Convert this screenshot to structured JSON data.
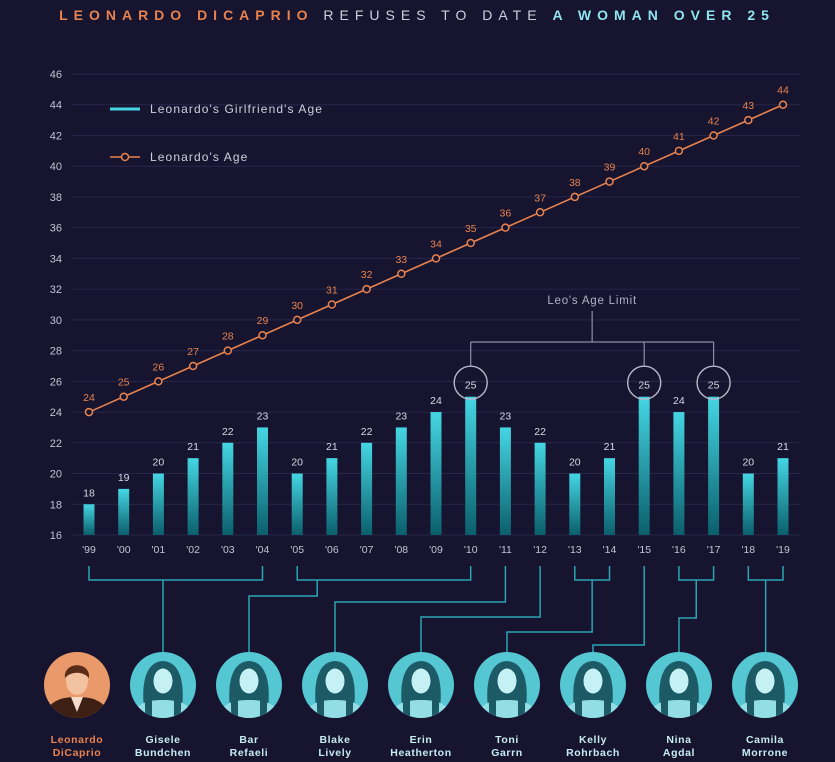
{
  "colors": {
    "background": "#16142e",
    "orange": "#e8834f",
    "cyan": "#45d6e3",
    "title_gray": "#cfcede",
    "title_cyan": "#8fe4ee",
    "grid": "#28264b",
    "connector": "#2aa3b4",
    "portrait_cyan": "#55c7d3",
    "portrait_orange": "#ea9a6a",
    "name_text": "#c6ecf2"
  },
  "chart_data": {
    "type": "bar",
    "title": [
      "LEONARDO DICAPRIO",
      "REFUSES TO DATE",
      "A WOMAN OVER 25"
    ],
    "categories": [
      "'99",
      "'00",
      "'01",
      "'02",
      "'03",
      "'04",
      "'05",
      "'06",
      "'07",
      "'08",
      "'09",
      "'10",
      "'11",
      "'12",
      "'13",
      "'14",
      "'15",
      "'16",
      "'17",
      "'18",
      "'19"
    ],
    "series": [
      {
        "name": "Leonardo's Girlfriend's Age",
        "type": "bar",
        "values": [
          18,
          19,
          20,
          21,
          22,
          23,
          20,
          21,
          22,
          23,
          24,
          25,
          23,
          22,
          20,
          21,
          25,
          24,
          25,
          20,
          21
        ]
      },
      {
        "name": "Leonardo's Age",
        "type": "line",
        "values": [
          24,
          25,
          26,
          27,
          28,
          29,
          30,
          31,
          32,
          33,
          34,
          35,
          36,
          37,
          38,
          39,
          40,
          41,
          42,
          43,
          44
        ]
      }
    ],
    "ylim": [
      16,
      46
    ],
    "yticks": [
      16,
      18,
      20,
      22,
      24,
      26,
      28,
      30,
      32,
      34,
      36,
      38,
      40,
      42,
      44,
      46
    ],
    "grid": true,
    "legend_position": "top-left",
    "annotations": [
      {
        "text": "Leo's Age Limit",
        "category_indices": [
          11,
          16,
          18
        ]
      }
    ]
  },
  "people": [
    {
      "name_lines": [
        "Leonardo",
        "DiCaprio"
      ],
      "is_leo": true
    },
    {
      "name_lines": [
        "Gisele",
        "Bundchen"
      ],
      "year_indices": [
        0,
        5
      ]
    },
    {
      "name_lines": [
        "Bar",
        "Refaeli"
      ],
      "year_indices": [
        6,
        11
      ]
    },
    {
      "name_lines": [
        "Blake",
        "Lively"
      ],
      "year_indices": [
        12,
        12
      ]
    },
    {
      "name_lines": [
        "Erin",
        "Heatherton"
      ],
      "year_indices": [
        13,
        13
      ]
    },
    {
      "name_lines": [
        "Toni",
        "Garrn"
      ],
      "year_indices": [
        14,
        15
      ]
    },
    {
      "name_lines": [
        "Kelly",
        "Rohrbach"
      ],
      "year_indices": [
        16,
        16
      ]
    },
    {
      "name_lines": [
        "Nina",
        "Agdal"
      ],
      "year_indices": [
        17,
        18
      ]
    },
    {
      "name_lines": [
        "Camila",
        "Morrone"
      ],
      "year_indices": [
        19,
        20
      ]
    }
  ]
}
